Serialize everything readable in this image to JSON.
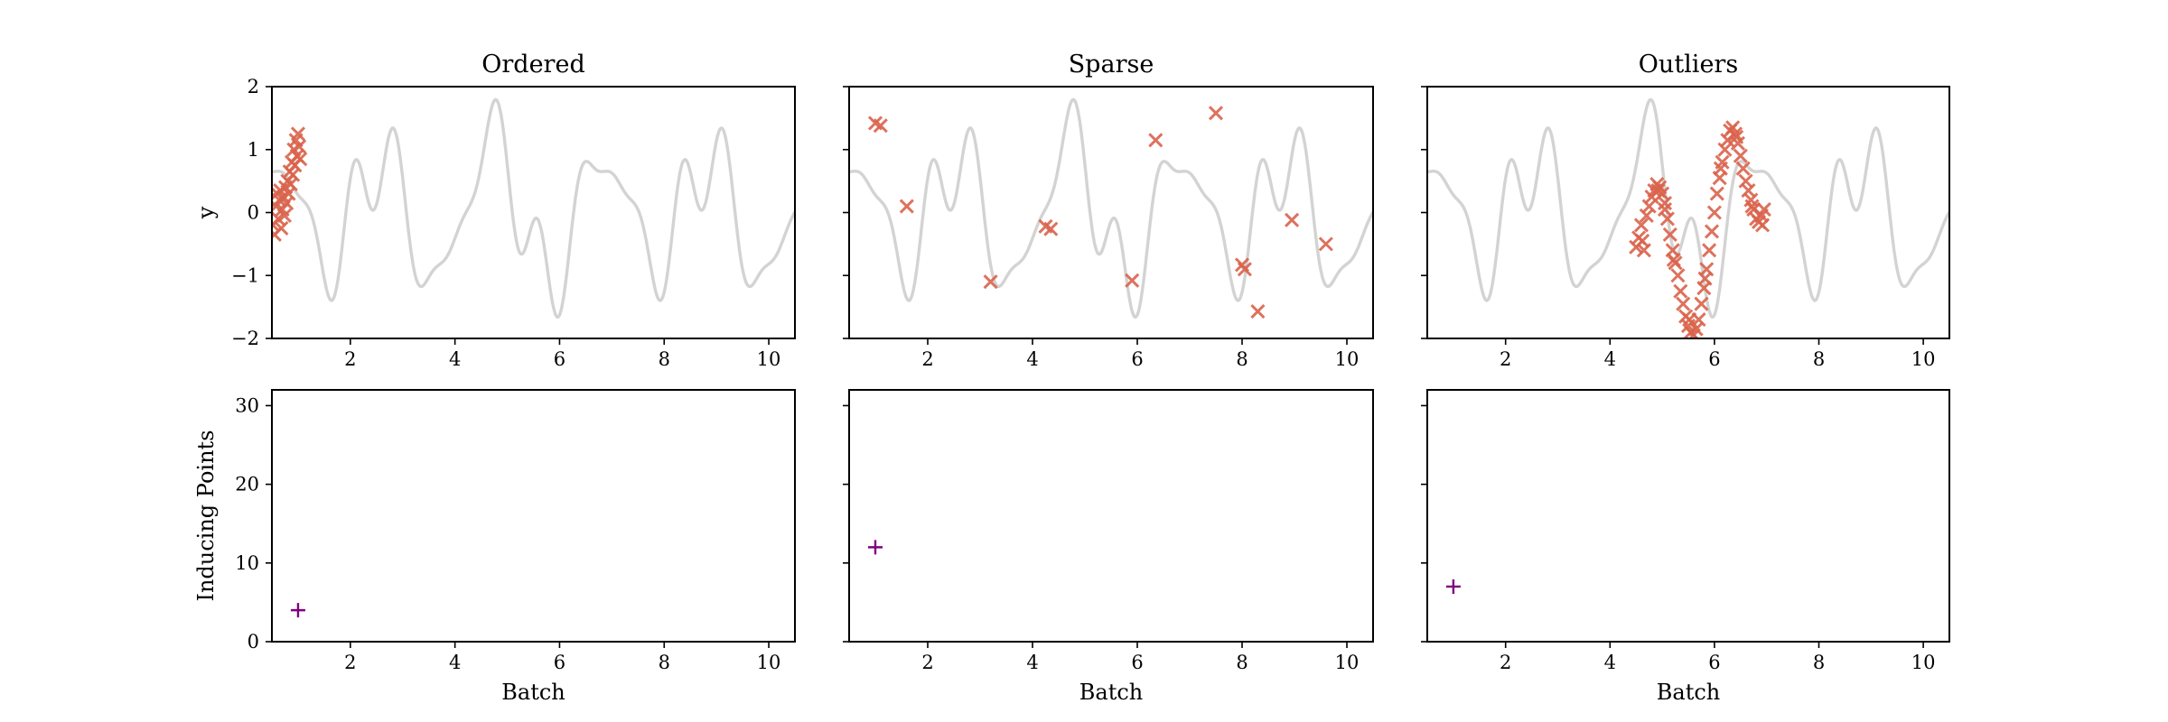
{
  "chart_data": [
    {
      "type": "scatter",
      "title": "Ordered",
      "xlabel": "",
      "ylabel": "y",
      "xlim": [
        0.5,
        10.5
      ],
      "ylim": [
        -2,
        2
      ],
      "xticks": [
        2,
        4,
        6,
        8,
        10
      ],
      "yticks": [
        -2,
        -1,
        0,
        1,
        2
      ],
      "true_function_color": "#d3d3d3",
      "marker": "x",
      "marker_color": "#d9634b",
      "points": [
        [
          0.52,
          -0.2
        ],
        [
          0.55,
          -0.35
        ],
        [
          0.58,
          0.1
        ],
        [
          0.6,
          0.3
        ],
        [
          0.62,
          -0.1
        ],
        [
          0.64,
          0.2
        ],
        [
          0.66,
          0.35
        ],
        [
          0.68,
          -0.25
        ],
        [
          0.7,
          0.05
        ],
        [
          0.72,
          0.25
        ],
        [
          0.74,
          -0.05
        ],
        [
          0.76,
          0.4
        ],
        [
          0.78,
          0.15
        ],
        [
          0.8,
          0.5
        ],
        [
          0.82,
          0.3
        ],
        [
          0.84,
          0.65
        ],
        [
          0.86,
          0.45
        ],
        [
          0.88,
          0.8
        ],
        [
          0.9,
          0.6
        ],
        [
          0.92,
          1.0
        ],
        [
          0.94,
          0.75
        ],
        [
          0.96,
          1.15
        ],
        [
          0.98,
          0.9
        ],
        [
          1.0,
          1.25
        ],
        [
          1.02,
          1.05
        ],
        [
          1.04,
          0.85
        ]
      ]
    },
    {
      "type": "scatter",
      "title": "Sparse",
      "xlabel": "",
      "ylabel": "",
      "xlim": [
        0.5,
        10.5
      ],
      "ylim": [
        -2,
        2
      ],
      "xticks": [
        2,
        4,
        6,
        8,
        10
      ],
      "yticks": [
        -2,
        -1,
        0,
        1,
        2
      ],
      "true_function_color": "#d3d3d3",
      "marker": "x",
      "marker_color": "#d9634b",
      "points": [
        [
          1.0,
          1.42
        ],
        [
          1.1,
          1.38
        ],
        [
          1.6,
          0.1
        ],
        [
          3.2,
          -1.1
        ],
        [
          4.25,
          -0.22
        ],
        [
          4.35,
          -0.26
        ],
        [
          5.9,
          -1.08
        ],
        [
          6.35,
          1.15
        ],
        [
          7.5,
          1.58
        ],
        [
          8.0,
          -0.83
        ],
        [
          8.05,
          -0.9
        ],
        [
          8.3,
          -1.57
        ],
        [
          8.95,
          -0.12
        ],
        [
          9.6,
          -0.5
        ]
      ]
    },
    {
      "type": "scatter",
      "title": "Outliers",
      "xlabel": "",
      "ylabel": "",
      "xlim": [
        0.5,
        10.5
      ],
      "ylim": [
        -2,
        2
      ],
      "xticks": [
        2,
        4,
        6,
        8,
        10
      ],
      "yticks": [
        -2,
        -1,
        0,
        1,
        2
      ],
      "true_function_color": "#d3d3d3",
      "marker": "x",
      "marker_color": "#d9634b",
      "points": [
        [
          4.5,
          -0.55
        ],
        [
          4.55,
          -0.4
        ],
        [
          4.6,
          -0.2
        ],
        [
          4.65,
          -0.6
        ],
        [
          4.7,
          -0.05
        ],
        [
          4.75,
          0.1
        ],
        [
          4.8,
          0.25
        ],
        [
          4.85,
          0.35
        ],
        [
          4.9,
          0.45
        ],
        [
          4.95,
          0.4
        ],
        [
          5.0,
          0.3
        ],
        [
          5.05,
          0.15
        ],
        [
          5.1,
          -0.1
        ],
        [
          5.15,
          -0.35
        ],
        [
          5.2,
          -0.6
        ],
        [
          5.25,
          -0.8
        ],
        [
          5.3,
          -1.0
        ],
        [
          5.35,
          -1.25
        ],
        [
          5.4,
          -1.45
        ],
        [
          5.45,
          -1.65
        ],
        [
          5.5,
          -1.8
        ],
        [
          5.55,
          -1.9
        ],
        [
          5.6,
          -1.95
        ],
        [
          5.65,
          -1.85
        ],
        [
          5.7,
          -1.7
        ],
        [
          5.75,
          -1.45
        ],
        [
          5.8,
          -1.2
        ],
        [
          5.85,
          -0.9
        ],
        [
          5.9,
          -0.6
        ],
        [
          5.95,
          -0.3
        ],
        [
          6.0,
          0.0
        ],
        [
          6.05,
          0.3
        ],
        [
          6.1,
          0.55
        ],
        [
          6.15,
          0.8
        ],
        [
          6.2,
          1.0
        ],
        [
          6.25,
          1.15
        ],
        [
          6.3,
          1.3
        ],
        [
          6.35,
          1.35
        ],
        [
          6.4,
          1.25
        ],
        [
          6.45,
          1.1
        ],
        [
          6.5,
          0.9
        ],
        [
          6.55,
          0.7
        ],
        [
          6.6,
          0.5
        ],
        [
          6.65,
          0.35
        ],
        [
          6.7,
          0.2
        ],
        [
          6.75,
          0.05
        ],
        [
          6.8,
          -0.1
        ],
        [
          6.85,
          -0.15
        ],
        [
          6.9,
          -0.05
        ],
        [
          6.95,
          0.05
        ],
        [
          4.62,
          -0.45
        ],
        [
          4.92,
          0.35
        ],
        [
          5.22,
          -0.75
        ],
        [
          5.52,
          -1.7
        ],
        [
          5.82,
          -1.05
        ],
        [
          6.12,
          0.7
        ],
        [
          6.42,
          1.2
        ],
        [
          6.72,
          0.1
        ],
        [
          6.92,
          -0.2
        ],
        [
          5.05,
          0.05
        ]
      ]
    },
    {
      "type": "scatter",
      "title": "",
      "xlabel": "Batch",
      "ylabel": "Inducing Points",
      "xlim": [
        0.5,
        10.5
      ],
      "ylim": [
        0,
        32
      ],
      "xticks": [
        2,
        4,
        6,
        8,
        10
      ],
      "yticks": [
        0,
        10,
        20,
        30
      ],
      "marker": "+",
      "marker_color": "#800080",
      "points": [
        [
          1,
          4
        ]
      ]
    },
    {
      "type": "scatter",
      "title": "",
      "xlabel": "Batch",
      "ylabel": "",
      "xlim": [
        0.5,
        10.5
      ],
      "ylim": [
        0,
        32
      ],
      "xticks": [
        2,
        4,
        6,
        8,
        10
      ],
      "yticks": [
        0,
        10,
        20,
        30
      ],
      "marker": "+",
      "marker_color": "#800080",
      "points": [
        [
          1,
          12
        ]
      ]
    },
    {
      "type": "scatter",
      "title": "",
      "xlabel": "Batch",
      "ylabel": "",
      "xlim": [
        0.5,
        10.5
      ],
      "ylim": [
        0,
        32
      ],
      "xticks": [
        2,
        4,
        6,
        8,
        10
      ],
      "yticks": [
        0,
        10,
        20,
        30
      ],
      "marker": "+",
      "marker_color": "#800080",
      "points": [
        [
          1,
          7
        ]
      ]
    }
  ]
}
